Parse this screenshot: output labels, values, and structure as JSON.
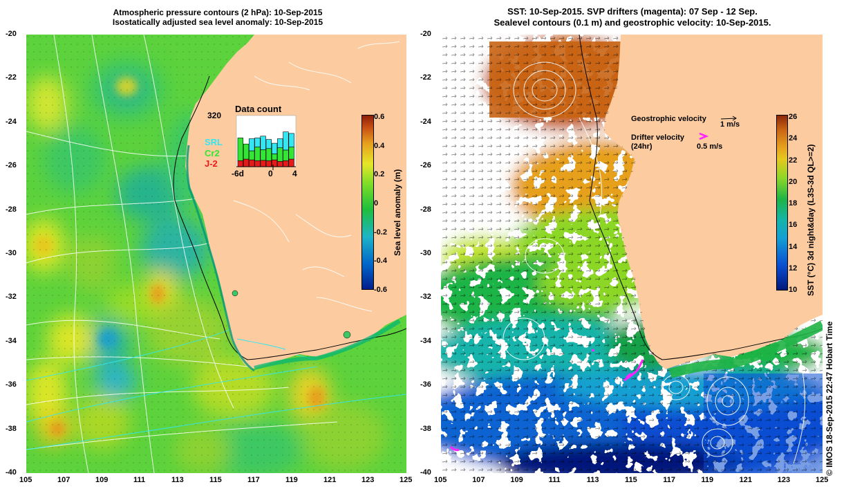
{
  "left_map": {
    "title_line1": "Atmospheric pressure contours (2 hPa): 10-Sep-2015",
    "title_line2": "Isostatically adjusted sea level anomaly: 10-Sep-2015",
    "x_ticks": [
      "105",
      "107",
      "109",
      "111",
      "113",
      "115",
      "117",
      "119",
      "121",
      "123",
      "125"
    ],
    "y_ticks": [
      "-20",
      "-22",
      "-24",
      "-26",
      "-28",
      "-30",
      "-32",
      "-34",
      "-36",
      "-38",
      "-40"
    ],
    "colorbar": {
      "label": "Sea level anomaly (m)",
      "ticks": [
        "0.6",
        "0.4",
        "0.2",
        "0",
        "-0.2",
        "-0.4",
        "-0.6"
      ],
      "range": [
        -0.6,
        0.6
      ]
    },
    "data_count": {
      "title": "Data count",
      "max_label": "320",
      "x_ticks": [
        "-6d",
        "0",
        "4"
      ],
      "legend": [
        {
          "name": "SRL",
          "color": "#33e6f2"
        },
        {
          "name": "Cr2",
          "color": "#33e633"
        },
        {
          "name": "J-2",
          "color": "#e61a1a"
        }
      ],
      "days": [
        -6,
        -5,
        -4,
        -3,
        -2,
        -1,
        0,
        1,
        2,
        3
      ],
      "J2": [
        40,
        50,
        45,
        40,
        42,
        40,
        45,
        35,
        40,
        50
      ],
      "Cr2": [
        150,
        100,
        60,
        90,
        70,
        80,
        40,
        90,
        70,
        80
      ],
      "SRL": [
        0,
        0,
        80,
        60,
        90,
        60,
        70,
        60,
        120,
        90
      ]
    }
  },
  "right_map": {
    "title_line1": "SST: 10-Sep-2015. SVP drifters (magenta): 07 Sep - 12 Sep.",
    "title_line2": "Sealevel contours (0.1 m) and geostrophic velocity: 10-Sep-2015.",
    "x_ticks": [
      "105",
      "107",
      "109",
      "111",
      "113",
      "115",
      "117",
      "119",
      "121",
      "123",
      "125"
    ],
    "y_ticks": [
      "-20",
      "-22",
      "-24",
      "-26",
      "-28",
      "-30",
      "-32",
      "-34",
      "-36",
      "-38",
      "-40"
    ],
    "colorbar": {
      "label": "SST (°C) 3d night&day (L3S-3d QL>=2)",
      "ticks": [
        "26",
        "24",
        "22",
        "20",
        "18",
        "16",
        "14",
        "12",
        "10"
      ],
      "range": [
        10,
        26
      ]
    },
    "legend": {
      "geostrophic_label": "Geostrophic velocity",
      "geostrophic_scale": "1 m/s",
      "drifter_label": "Drifter velocity",
      "drifter_sub": "(24hr)",
      "drifter_scale": "0.5 m/s",
      "drifter_color": "#ff22ff"
    }
  },
  "copyright": "© IMOS 18-Sep-2015 22:47 Hobart Time",
  "colors": {
    "land": "#fccca0",
    "sla_scale": [
      "#001e8c",
      "#0064c8",
      "#1eb4c8",
      "#1ebe3c",
      "#78dc28",
      "#e6e628",
      "#e6a01e",
      "#c85014",
      "#8c1e0a"
    ],
    "sst_scale": [
      "#00187a",
      "#0a4ed2",
      "#14a0d2",
      "#1eb446",
      "#8cd728",
      "#e6a01e",
      "#c86414",
      "#8c2808"
    ]
  }
}
